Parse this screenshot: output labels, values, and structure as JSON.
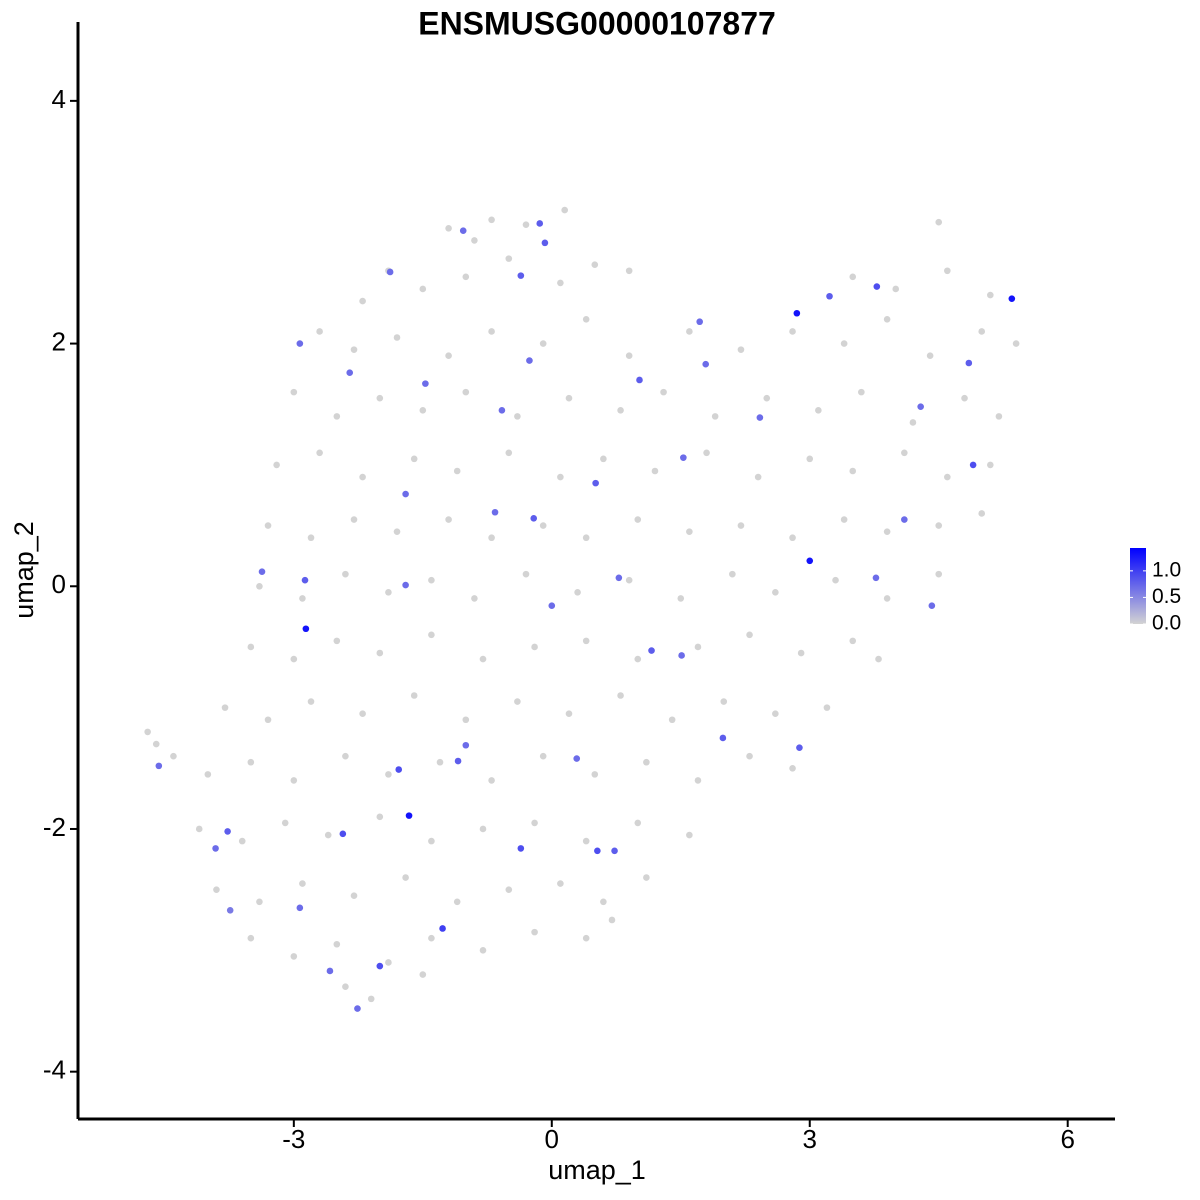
{
  "chart_data": {
    "type": "scatter",
    "title": "ENSMUSG00000107877",
    "xlabel": "umap_1",
    "ylabel": "umap_2",
    "xlim": [
      -5.51,
      6.55
    ],
    "ylim": [
      -4.39,
      4.65
    ],
    "xticks": [
      -3,
      0,
      3,
      6
    ],
    "yticks": [
      -4,
      -2,
      0,
      2,
      4
    ],
    "grid": false,
    "colors": [
      "#d3d3d3",
      "#0000ff"
    ],
    "clim": [
      0,
      1.43
    ],
    "cticks": [
      {
        "value": 0,
        "label": "0.0"
      },
      {
        "value": 0.5,
        "label": "0.5"
      },
      {
        "value": 1,
        "label": "1.0"
      }
    ],
    "legend": "right",
    "x": [
      -1.2,
      -0.7,
      -0.3,
      0.15,
      4.5,
      -0.9,
      -1.9,
      -1.5,
      -1.0,
      -0.5,
      0.1,
      0.5,
      0.9,
      3.5,
      4.0,
      4.6,
      5.1,
      -2.2,
      -2.7,
      -2.3,
      -1.8,
      -1.2,
      -0.7,
      -0.1,
      0.4,
      0.9,
      1.6,
      2.2,
      2.8,
      3.4,
      3.9,
      4.4,
      5.0,
      5.4,
      -3.0,
      -2.5,
      -2.0,
      -1.5,
      -1.0,
      -0.4,
      0.2,
      0.8,
      1.3,
      1.9,
      2.5,
      3.1,
      3.6,
      4.2,
      4.8,
      5.2,
      -3.2,
      -2.7,
      -2.2,
      -1.6,
      -1.1,
      -0.5,
      0.1,
      0.6,
      1.2,
      1.8,
      2.4,
      3.0,
      3.5,
      4.1,
      4.6,
      5.1,
      -3.3,
      -2.8,
      -2.3,
      -1.8,
      -1.2,
      -0.7,
      -0.1,
      0.4,
      1.0,
      1.6,
      2.2,
      2.8,
      3.4,
      3.9,
      4.5,
      5.0,
      -3.4,
      -2.9,
      -2.4,
      -1.9,
      -1.4,
      -0.9,
      -0.3,
      0.3,
      0.9,
      1.5,
      2.1,
      2.6,
      3.3,
      3.9,
      4.5,
      -3.5,
      -3.0,
      -2.5,
      -2.0,
      -1.4,
      -0.8,
      -0.2,
      0.4,
      1.0,
      1.7,
      2.3,
      2.9,
      3.5,
      3.8,
      -3.8,
      -3.3,
      -2.8,
      -2.2,
      -1.6,
      -1.0,
      -0.4,
      0.2,
      0.8,
      1.4,
      2.0,
      2.6,
      3.2,
      -4.4,
      -4.0,
      -3.5,
      -3.0,
      -2.4,
      -1.9,
      -1.3,
      -0.7,
      -0.1,
      0.5,
      1.1,
      1.7,
      2.3,
      2.8,
      -4.1,
      -3.6,
      -3.1,
      -2.6,
      -2.0,
      -1.4,
      -0.8,
      -0.2,
      0.4,
      1.0,
      1.6,
      -3.9,
      -3.4,
      -2.9,
      -2.3,
      -1.7,
      -1.1,
      -0.5,
      0.1,
      0.6,
      1.1,
      -3.5,
      -3.0,
      -2.5,
      -1.9,
      -1.4,
      -0.8,
      -0.2,
      0.4,
      0.7,
      -2.4,
      -2.1,
      -1.5,
      -4.7,
      -4.6,
      -1.27,
      -2.0,
      -0.36,
      -0.14,
      3.23,
      3.78,
      4.85,
      4.9,
      1.02,
      1.53,
      -0.66,
      -0.21,
      0.51,
      1.16,
      1.51,
      1.99,
      2.88,
      0.73,
      0.53,
      -0.36,
      -1.09,
      -1.78,
      -2.43,
      -2.26,
      -2.87,
      -3.37,
      -3.77,
      -3.91,
      -4.57,
      -2.93,
      -2.35,
      -1.88,
      -1.03,
      -0.08,
      -1.47,
      -0.58,
      -0.26,
      -1.7,
      -1.7,
      -1.0,
      0.0,
      0.29,
      0.78,
      2.42,
      4.29,
      4.1,
      4.42,
      3.77,
      1.72,
      1.79,
      -2.58,
      -2.93,
      -3.74,
      2.85,
      5.35,
      3.0,
      -2.86,
      -1.66
    ],
    "y": [
      2.95,
      3.02,
      2.98,
      3.1,
      3.0,
      2.85,
      2.6,
      2.45,
      2.55,
      2.7,
      2.5,
      2.65,
      2.6,
      2.55,
      2.45,
      2.6,
      2.4,
      2.35,
      2.1,
      1.95,
      2.05,
      1.9,
      2.1,
      2.0,
      2.2,
      1.9,
      2.1,
      1.95,
      2.1,
      2.0,
      2.2,
      1.9,
      2.1,
      2.0,
      1.6,
      1.4,
      1.55,
      1.45,
      1.6,
      1.4,
      1.55,
      1.45,
      1.6,
      1.4,
      1.55,
      1.45,
      1.6,
      1.35,
      1.55,
      1.4,
      1.0,
      1.1,
      0.9,
      1.05,
      0.95,
      1.1,
      0.9,
      1.05,
      0.95,
      1.1,
      0.9,
      1.05,
      0.95,
      1.1,
      0.9,
      1.0,
      0.5,
      0.4,
      0.55,
      0.45,
      0.55,
      0.4,
      0.5,
      0.4,
      0.55,
      0.45,
      0.5,
      0.4,
      0.55,
      0.45,
      0.5,
      0.6,
      0.0,
      -0.1,
      0.1,
      -0.05,
      0.05,
      -0.1,
      0.1,
      -0.05,
      0.05,
      -0.1,
      0.1,
      -0.05,
      0.05,
      -0.1,
      0.1,
      -0.5,
      -0.6,
      -0.45,
      -0.55,
      -0.4,
      -0.6,
      -0.5,
      -0.45,
      -0.6,
      -0.5,
      -0.4,
      -0.55,
      -0.45,
      -0.6,
      -1.0,
      -1.1,
      -0.95,
      -1.05,
      -0.9,
      -1.1,
      -0.95,
      -1.05,
      -0.9,
      -1.1,
      -0.95,
      -1.05,
      -1.0,
      -1.4,
      -1.55,
      -1.45,
      -1.6,
      -1.4,
      -1.55,
      -1.45,
      -1.6,
      -1.4,
      -1.55,
      -1.45,
      -1.6,
      -1.4,
      -1.5,
      -2.0,
      -2.1,
      -1.95,
      -2.05,
      -1.9,
      -2.1,
      -2.0,
      -1.95,
      -2.1,
      -1.95,
      -2.05,
      -2.5,
      -2.6,
      -2.45,
      -2.55,
      -2.4,
      -2.6,
      -2.5,
      -2.45,
      -2.6,
      -2.4,
      -2.9,
      -3.05,
      -2.95,
      -3.1,
      -2.9,
      -3.0,
      -2.85,
      -2.9,
      -2.75,
      -3.3,
      -3.4,
      -3.2,
      -1.2,
      -1.3,
      -2.82,
      -3.13,
      2.56,
      2.99,
      2.39,
      2.47,
      1.84,
      1.0,
      1.7,
      1.06,
      0.61,
      0.56,
      0.85,
      -0.53,
      -0.57,
      -1.25,
      -1.33,
      -2.18,
      -2.18,
      -2.16,
      -1.44,
      -1.51,
      -2.04,
      -3.48,
      0.05,
      0.12,
      -2.02,
      -2.16,
      -1.48,
      2.0,
      1.76,
      2.59,
      2.93,
      2.83,
      1.67,
      1.45,
      1.86,
      0.76,
      0.01,
      -1.31,
      -0.16,
      -1.42,
      0.07,
      1.39,
      1.48,
      0.55,
      -0.16,
      0.07,
      2.18,
      1.83,
      -3.17,
      -2.65,
      -2.67,
      2.25,
      2.37,
      0.21,
      -0.35,
      -1.89
    ],
    "values": [
      0,
      0,
      0,
      0,
      0,
      0,
      0,
      0,
      0,
      0,
      0,
      0,
      0,
      0,
      0,
      0,
      0,
      0,
      0,
      0,
      0,
      0,
      0,
      0,
      0,
      0,
      0,
      0,
      0,
      0,
      0,
      0,
      0,
      0,
      0,
      0,
      0,
      0,
      0,
      0,
      0,
      0,
      0,
      0,
      0,
      0,
      0,
      0,
      0,
      0,
      0,
      0,
      0,
      0,
      0,
      0,
      0,
      0,
      0,
      0,
      0,
      0,
      0,
      0,
      0,
      0,
      0,
      0,
      0,
      0,
      0,
      0,
      0,
      0,
      0,
      0,
      0,
      0,
      0,
      0,
      0,
      0,
      0,
      0,
      0,
      0,
      0,
      0,
      0,
      0,
      0,
      0,
      0,
      0,
      0,
      0,
      0,
      0,
      0,
      0,
      0,
      0,
      0,
      0,
      0,
      0,
      0,
      0,
      0,
      0,
      0,
      0,
      0,
      0,
      0,
      0,
      0,
      0,
      0,
      0,
      0,
      0,
      0,
      0,
      0,
      0,
      0,
      0,
      0,
      0,
      0,
      0,
      0,
      0,
      0,
      0,
      0,
      0,
      0,
      0,
      0,
      0,
      0,
      0,
      0,
      0,
      0,
      0,
      0,
      0,
      0,
      0,
      0,
      0,
      0,
      0,
      0,
      0,
      0,
      0,
      0,
      0,
      0,
      0,
      0,
      0,
      0,
      0,
      0,
      0,
      0,
      0,
      0,
      1.0,
      0.9,
      0.8,
      0.8,
      0.8,
      0.9,
      0.8,
      0.9,
      0.8,
      0.7,
      0.7,
      0.8,
      0.8,
      0.8,
      0.7,
      0.8,
      0.8,
      0.8,
      0.9,
      0.9,
      0.8,
      0.9,
      0.9,
      0.7,
      0.8,
      0.7,
      0.8,
      0.7,
      0.7,
      0.7,
      0.7,
      0.7,
      0.7,
      0.8,
      0.7,
      0.7,
      0.7,
      0.7,
      0.7,
      0.7,
      0.7,
      0.7,
      0.7,
      0.7,
      0.7,
      0.7,
      0.7,
      0.7,
      0.7,
      0.7,
      0.7,
      0.7,
      0.6,
      1.3,
      1.3,
      1.3,
      1.3,
      1.3
    ]
  }
}
